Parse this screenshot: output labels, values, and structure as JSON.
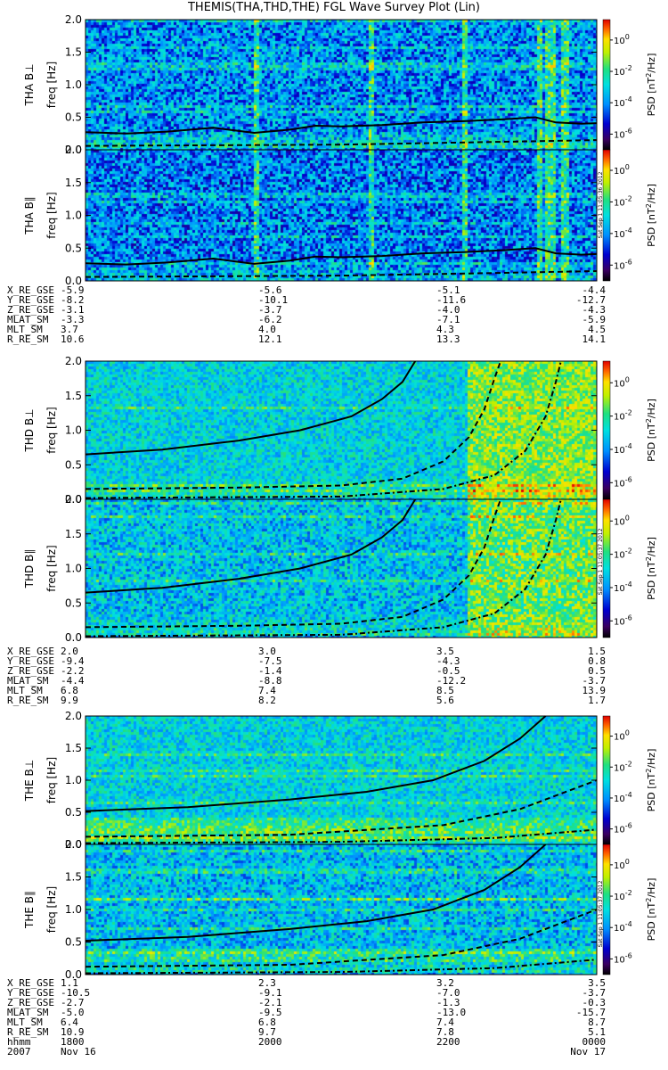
{
  "title": "THEMIS(THA,THD,THE) FGL Wave Survey Plot (Lin)",
  "colorbar": {
    "label_prefix": "PSD [nT",
    "label_sup": "2",
    "label_suffix": "/Hz]",
    "ticks": [
      {
        "base": "10",
        "exp": "0",
        "log": 0
      },
      {
        "base": "10",
        "exp": "-2",
        "log": -2
      },
      {
        "base": "10",
        "exp": "-4",
        "log": -4
      },
      {
        "base": "10",
        "exp": "-6",
        "log": -6
      }
    ]
  },
  "freq_axis_label": "freq [Hz]",
  "y_ticks": [
    "0.0",
    "0.5",
    "1.0",
    "1.5",
    "2.0"
  ],
  "chart_data": [
    {
      "type": "heatmap",
      "probe": "THA",
      "title": "THA B⊥",
      "ylabel": "freq [Hz]",
      "ylim": [
        0,
        2.0
      ],
      "zlog_range": [
        -7,
        1.3
      ],
      "x": [
        0,
        1
      ],
      "base_log": -4.0,
      "noise_hi": 1.6,
      "low_boost": 0.8,
      "spikes": [
        0.333,
        0.555,
        0.74,
        0.887,
        0.9,
        0.912,
        0.935
      ],
      "lines": [
        {
          "style": "solid",
          "points": [
            [
              0,
              0.27
            ],
            [
              0.08,
              0.25
            ],
            [
              0.16,
              0.28
            ],
            [
              0.25,
              0.34
            ],
            [
              0.33,
              0.26
            ],
            [
              0.4,
              0.31
            ],
            [
              0.45,
              0.37
            ],
            [
              0.5,
              0.36
            ],
            [
              0.58,
              0.38
            ],
            [
              0.66,
              0.42
            ],
            [
              0.74,
              0.44
            ],
            [
              0.82,
              0.47
            ],
            [
              0.88,
              0.5
            ],
            [
              0.92,
              0.42
            ],
            [
              0.97,
              0.4
            ],
            [
              1,
              0.41
            ]
          ]
        },
        {
          "style": "dashed",
          "points": [
            [
              0,
              0.06
            ],
            [
              0.5,
              0.08
            ],
            [
              0.8,
              0.12
            ],
            [
              1,
              0.15
            ]
          ]
        }
      ]
    },
    {
      "type": "heatmap",
      "probe": "THA",
      "title": "THA B∥",
      "ylabel": "freq [Hz]",
      "ylim": [
        0,
        2.0
      ],
      "zlog_range": [
        -7,
        1.3
      ],
      "x": [
        0,
        1
      ],
      "base_log": -4.2,
      "noise_hi": 1.6,
      "low_boost": 0.6,
      "spikes": [
        0.333,
        0.555,
        0.74,
        0.887,
        0.9,
        0.912,
        0.935
      ],
      "lines": [
        {
          "style": "solid",
          "points": [
            [
              0,
              0.27
            ],
            [
              0.08,
              0.25
            ],
            [
              0.16,
              0.28
            ],
            [
              0.25,
              0.34
            ],
            [
              0.33,
              0.26
            ],
            [
              0.4,
              0.31
            ],
            [
              0.45,
              0.37
            ],
            [
              0.5,
              0.36
            ],
            [
              0.58,
              0.38
            ],
            [
              0.66,
              0.42
            ],
            [
              0.74,
              0.44
            ],
            [
              0.82,
              0.47
            ],
            [
              0.88,
              0.5
            ],
            [
              0.92,
              0.42
            ],
            [
              0.97,
              0.4
            ],
            [
              1,
              0.41
            ]
          ]
        },
        {
          "style": "dashed",
          "points": [
            [
              0,
              0.06
            ],
            [
              0.5,
              0.08
            ],
            [
              0.8,
              0.12
            ],
            [
              1,
              0.15
            ]
          ]
        }
      ]
    },
    {
      "type": "heatmap",
      "probe": "THD",
      "title": "THD B⊥",
      "ylabel": "freq [Hz]",
      "ylim": [
        0,
        2.0
      ],
      "zlog_range": [
        -7,
        1.3
      ],
      "x": [
        0,
        1
      ],
      "base_log": -3.0,
      "noise_hi": 1.2,
      "low_boost": 0.4,
      "shock_x": 0.745,
      "spikes": [],
      "lines": [
        {
          "style": "solid",
          "points": [
            [
              0,
              0.65
            ],
            [
              0.15,
              0.72
            ],
            [
              0.3,
              0.85
            ],
            [
              0.42,
              1.0
            ],
            [
              0.52,
              1.2
            ],
            [
              0.58,
              1.45
            ],
            [
              0.62,
              1.7
            ],
            [
              0.645,
              2.0
            ]
          ]
        },
        {
          "style": "dashed",
          "points": [
            [
              0,
              0.15
            ],
            [
              0.3,
              0.17
            ],
            [
              0.5,
              0.2
            ],
            [
              0.62,
              0.3
            ],
            [
              0.7,
              0.55
            ],
            [
              0.75,
              0.9
            ],
            [
              0.78,
              1.3
            ],
            [
              0.8,
              1.75
            ],
            [
              0.812,
              2.0
            ]
          ]
        },
        {
          "style": "dashdot",
          "points": [
            [
              0,
              0.02
            ],
            [
              0.5,
              0.04
            ],
            [
              0.7,
              0.15
            ],
            [
              0.8,
              0.35
            ],
            [
              0.86,
              0.7
            ],
            [
              0.9,
              1.2
            ],
            [
              0.92,
              1.7
            ],
            [
              0.93,
              2.0
            ]
          ]
        }
      ]
    },
    {
      "type": "heatmap",
      "probe": "THD",
      "title": "THD B∥",
      "ylabel": "freq [Hz]",
      "ylim": [
        0,
        2.0
      ],
      "zlog_range": [
        -7,
        1.3
      ],
      "x": [
        0,
        1
      ],
      "base_log": -3.3,
      "noise_hi": 1.4,
      "low_boost": 0.5,
      "shock_x": 0.745,
      "spikes": [],
      "lines": [
        {
          "style": "solid",
          "points": [
            [
              0,
              0.65
            ],
            [
              0.15,
              0.72
            ],
            [
              0.3,
              0.85
            ],
            [
              0.42,
              1.0
            ],
            [
              0.52,
              1.2
            ],
            [
              0.58,
              1.45
            ],
            [
              0.62,
              1.7
            ],
            [
              0.645,
              2.0
            ]
          ]
        },
        {
          "style": "dashed",
          "points": [
            [
              0,
              0.15
            ],
            [
              0.3,
              0.17
            ],
            [
              0.5,
              0.2
            ],
            [
              0.62,
              0.3
            ],
            [
              0.7,
              0.55
            ],
            [
              0.75,
              0.9
            ],
            [
              0.78,
              1.3
            ],
            [
              0.8,
              1.75
            ],
            [
              0.812,
              2.0
            ]
          ]
        },
        {
          "style": "dashdot",
          "points": [
            [
              0,
              0.02
            ],
            [
              0.5,
              0.04
            ],
            [
              0.7,
              0.15
            ],
            [
              0.8,
              0.35
            ],
            [
              0.86,
              0.7
            ],
            [
              0.9,
              1.2
            ],
            [
              0.92,
              1.7
            ],
            [
              0.93,
              2.0
            ]
          ]
        }
      ]
    },
    {
      "type": "heatmap",
      "probe": "THE",
      "title": "THE B⊥",
      "ylabel": "freq [Hz]",
      "ylim": [
        0,
        2.0
      ],
      "zlog_range": [
        -7,
        1.3
      ],
      "x": [
        0,
        1
      ],
      "base_log": -3.0,
      "noise_hi": 1.2,
      "low_boost": 0.8,
      "band": [
        0.2,
        0.45
      ],
      "spikes": [],
      "lines": [
        {
          "style": "solid",
          "points": [
            [
              0,
              0.52
            ],
            [
              0.2,
              0.58
            ],
            [
              0.4,
              0.7
            ],
            [
              0.55,
              0.82
            ],
            [
              0.68,
              1.0
            ],
            [
              0.78,
              1.3
            ],
            [
              0.85,
              1.65
            ],
            [
              0.9,
              2.0
            ]
          ]
        },
        {
          "style": "dashed",
          "points": [
            [
              0,
              0.12
            ],
            [
              0.4,
              0.15
            ],
            [
              0.7,
              0.3
            ],
            [
              0.85,
              0.55
            ],
            [
              1,
              1.0
            ]
          ]
        },
        {
          "style": "dashdot",
          "points": [
            [
              0,
              0.02
            ],
            [
              0.5,
              0.04
            ],
            [
              0.8,
              0.1
            ],
            [
              1,
              0.23
            ]
          ]
        }
      ]
    },
    {
      "type": "heatmap",
      "probe": "THE",
      "title": "THE B∥",
      "ylabel": "freq [Hz]",
      "ylim": [
        0,
        2.0
      ],
      "zlog_range": [
        -7,
        1.3
      ],
      "x": [
        0,
        1
      ],
      "base_log": -3.4,
      "noise_hi": 1.4,
      "low_boost": 0.5,
      "band": [
        0.2,
        0.4
      ],
      "spikes": [],
      "lines": [
        {
          "style": "solid",
          "points": [
            [
              0,
              0.52
            ],
            [
              0.2,
              0.58
            ],
            [
              0.4,
              0.7
            ],
            [
              0.55,
              0.82
            ],
            [
              0.68,
              1.0
            ],
            [
              0.78,
              1.3
            ],
            [
              0.85,
              1.65
            ],
            [
              0.9,
              2.0
            ]
          ]
        },
        {
          "style": "dashed",
          "points": [
            [
              0,
              0.12
            ],
            [
              0.4,
              0.15
            ],
            [
              0.7,
              0.3
            ],
            [
              0.85,
              0.55
            ],
            [
              1,
              1.0
            ]
          ]
        },
        {
          "style": "dashdot",
          "points": [
            [
              0,
              0.02
            ],
            [
              0.5,
              0.04
            ],
            [
              0.8,
              0.1
            ],
            [
              1,
              0.23
            ]
          ]
        }
      ]
    }
  ],
  "ephemeris": [
    {
      "rows": [
        [
          "X_RE_GSE",
          "-5.9",
          "-5.6",
          "-5.1",
          "-4.4"
        ],
        [
          "Y_RE_GSE",
          "-8.2",
          "-10.1",
          "-11.6",
          "-12.7"
        ],
        [
          "Z_RE_GSE",
          "-3.1",
          "-3.7",
          "-4.0",
          "-4.3"
        ],
        [
          "MLAT_SM",
          "-3.3",
          "-6.2",
          "-7.1",
          "-5.9"
        ],
        [
          "MLT_SM",
          "3.7",
          "4.0",
          "4.3",
          "4.5"
        ],
        [
          "R_RE_SM",
          "10.6",
          "12.1",
          "13.3",
          "14.1"
        ]
      ]
    },
    {
      "rows": [
        [
          "X_RE_GSE",
          "2.0",
          "3.0",
          "3.5",
          "1.5"
        ],
        [
          "Y_RE_GSE",
          "-9.4",
          "-7.5",
          "-4.3",
          "0.8"
        ],
        [
          "Z_RE_GSE",
          "-2.2",
          "-1.4",
          "-0.5",
          "0.5"
        ],
        [
          "MLAT_SM",
          "-4.4",
          "-8.8",
          "-12.2",
          "-3.7"
        ],
        [
          "MLT_SM",
          "6.8",
          "7.4",
          "8.5",
          "13.9"
        ],
        [
          "R_RE_SM",
          "9.9",
          "8.2",
          "5.6",
          "1.7"
        ]
      ]
    },
    {
      "rows": [
        [
          "X_RE_GSE",
          "1.1",
          "2.3",
          "3.2",
          "3.5"
        ],
        [
          "Y_RE_GSE",
          "-10.5",
          "-9.1",
          "-7.0",
          "-3.7"
        ],
        [
          "Z_RE_GSE",
          "-2.7",
          "-2.1",
          "-1.3",
          "-0.3"
        ],
        [
          "MLAT_SM",
          "-5.0",
          "-9.5",
          "-13.0",
          "-15.7"
        ],
        [
          "MLT_SM",
          "6.4",
          "6.8",
          "7.4",
          "8.7"
        ],
        [
          "R_RE_SM",
          "10.9",
          "9.7",
          "7.8",
          "5.1"
        ],
        [
          "hhmm",
          "1800",
          "2000",
          "2200",
          "0000"
        ],
        [
          "2007",
          "Nov 16",
          "",
          "",
          "Nov 17"
        ]
      ]
    }
  ],
  "stamps": [
    "Sat Sep  1 11:05:36 2012",
    "Sat Sep  1 11:05:37 2012",
    "Sat Sep  1 11:05:37 2012"
  ]
}
